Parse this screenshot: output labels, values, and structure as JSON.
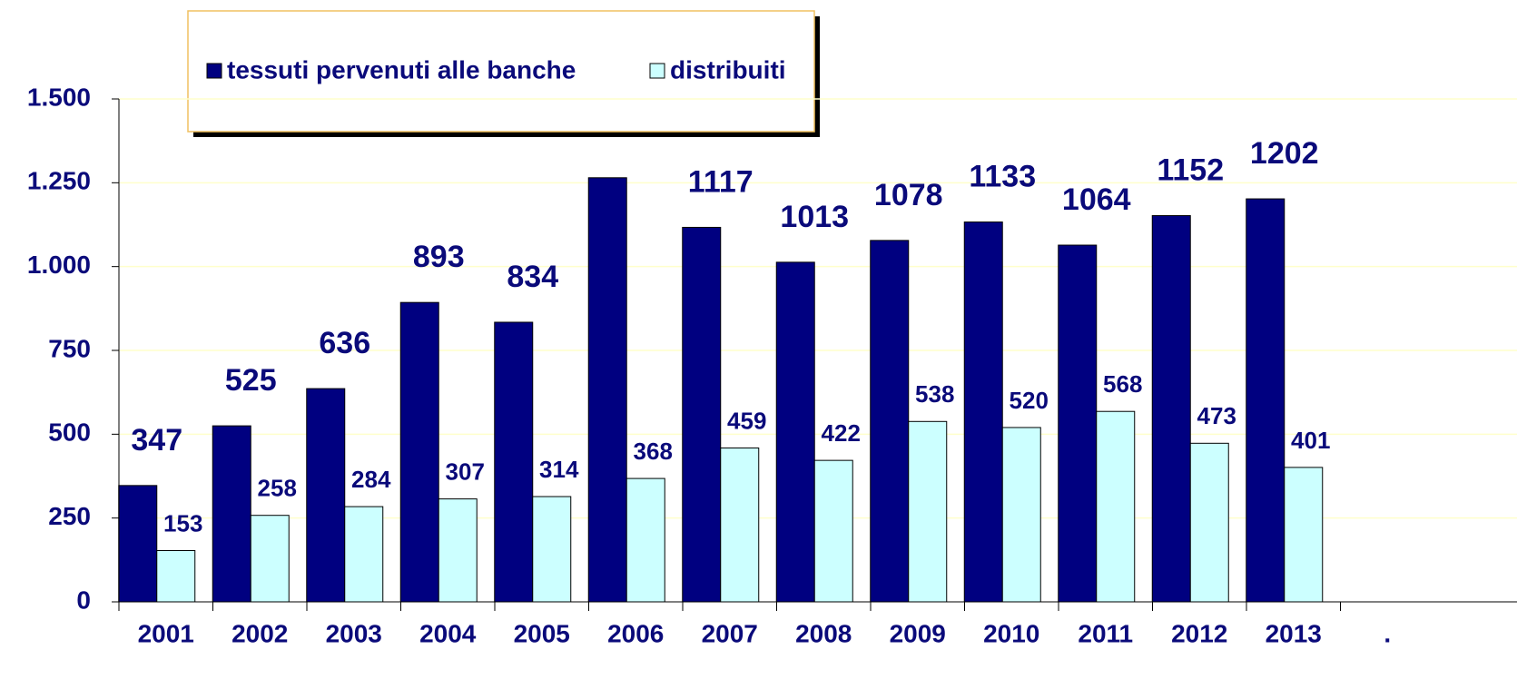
{
  "chart_data": {
    "type": "bar",
    "categories": [
      "2001",
      "2002",
      "2003",
      "2004",
      "2005",
      "2006",
      "2007",
      "2008",
      "2009",
      "2010",
      "2011",
      "2012",
      "2013",
      "."
    ],
    "series": [
      {
        "name": "tessuti pervenuti alle banche",
        "color": "#000080",
        "values": [
          347,
          525,
          636,
          893,
          834,
          1265,
          1117,
          1013,
          1078,
          1133,
          1064,
          1152,
          1202,
          null
        ],
        "value_labels": [
          "347",
          "525",
          "636",
          "893",
          "834",
          null,
          "1117",
          "1013",
          "1078",
          "1133",
          "1064",
          "1152",
          "1202",
          null
        ]
      },
      {
        "name": "distribuiti",
        "color": "#ccffff",
        "values": [
          153,
          258,
          284,
          307,
          314,
          368,
          459,
          422,
          538,
          520,
          568,
          473,
          401,
          null
        ]
      }
    ],
    "ylim": [
      0,
      1500
    ],
    "yticks": [
      0,
      250,
      500,
      750,
      {
        "value": 1000,
        "label": "1.000"
      },
      {
        "value": 1250,
        "label": "1.250"
      },
      {
        "value": 1500,
        "label": "1.500"
      }
    ],
    "grid": true,
    "grid_color": "#ffffcc",
    "legend": "top"
  }
}
